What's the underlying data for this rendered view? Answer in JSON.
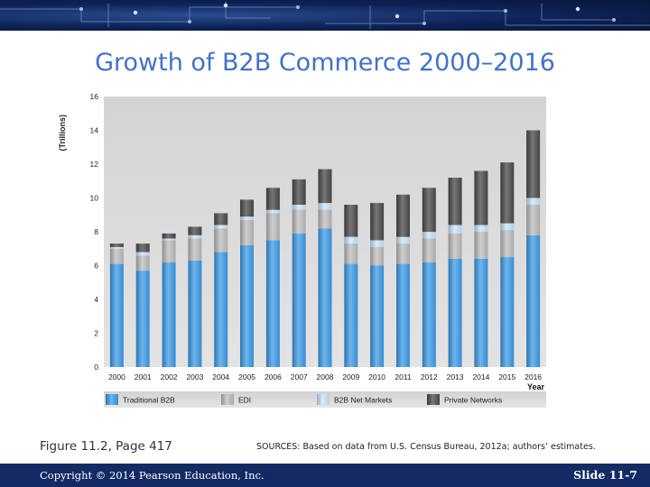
{
  "slide": {
    "title": "Growth of B2B Commerce 2000–2016",
    "figure_caption": "Figure 11.2, Page 417",
    "sources": "SOURCES: Based on data from U.S. Census Bureau, 2012a; authors’ estimates.",
    "copyright": "Copyright © 2014 Pearson Education, Inc.",
    "slide_number": "Slide 11-7"
  },
  "chart_data": {
    "type": "bar",
    "stacked": true,
    "title": "",
    "xlabel": "Year",
    "ylabel": "(Trillions)",
    "ylim": [
      0,
      16
    ],
    "yticks": [
      "0",
      "2",
      "4",
      "6",
      "8",
      "10",
      "12",
      "14",
      "16"
    ],
    "grid": false,
    "legend_position": "bottom",
    "categories": [
      "2000",
      "2001",
      "2002",
      "2003",
      "2004",
      "2005",
      "2006",
      "2007",
      "2008",
      "2009",
      "2010",
      "2011",
      "2012",
      "2013",
      "2014",
      "2015",
      "2016"
    ],
    "series": [
      {
        "name": "Traditional B2B",
        "color": "#3d9ce8",
        "values": [
          6.1,
          5.7,
          6.2,
          6.3,
          6.8,
          7.2,
          7.5,
          7.9,
          8.2,
          6.1,
          6.0,
          6.1,
          6.2,
          6.4,
          6.4,
          6.5,
          7.8
        ]
      },
      {
        "name": "EDI",
        "color": "#bdbdbd",
        "values": [
          0.9,
          0.9,
          1.3,
          1.3,
          1.4,
          1.5,
          1.6,
          1.4,
          1.1,
          1.2,
          1.1,
          1.2,
          1.4,
          1.5,
          1.6,
          1.6,
          1.8
        ]
      },
      {
        "name": "B2B Net Markets",
        "color": "#c9e6fb",
        "values": [
          0.1,
          0.2,
          0.1,
          0.2,
          0.2,
          0.2,
          0.2,
          0.3,
          0.4,
          0.4,
          0.4,
          0.4,
          0.4,
          0.5,
          0.4,
          0.4,
          0.4
        ]
      },
      {
        "name": "Private Networks",
        "color": "#4a4a4a",
        "values": [
          0.2,
          0.5,
          0.3,
          0.5,
          0.7,
          1.0,
          1.3,
          1.5,
          2.0,
          1.9,
          2.2,
          2.5,
          2.6,
          2.8,
          3.2,
          3.6,
          4.0
        ]
      }
    ]
  }
}
